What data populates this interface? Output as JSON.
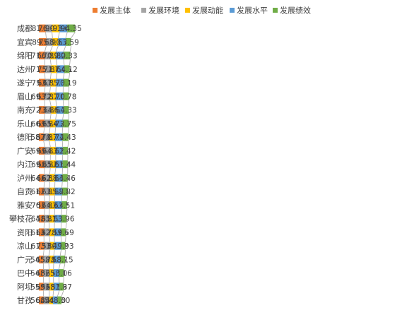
{
  "chart_data": {
    "type": "bar",
    "orientation": "horizontal",
    "stacked": true,
    "title": "",
    "legend_position": "top",
    "categories": [
      "成都",
      "宜宾",
      "绵阳",
      "达州",
      "遂宁",
      "眉山",
      "南充",
      "乐山",
      "德阳",
      "广安",
      "内江",
      "泸州",
      "自贡",
      "雅安",
      "攀枝花",
      "资阳",
      "凉山",
      "广元",
      "巴中",
      "阿坝",
      "甘孜"
    ],
    "series": [
      {
        "name": "发展主体",
        "color": "#ED7D31",
        "values": [
          81.17,
          89.32,
          71.36,
          71.58,
          75.6,
          69.13,
          72.71,
          66.04,
          58.07,
          69.27,
          69.21,
          64.42,
          61.38,
          70.07,
          64.11,
          61.08,
          61.35,
          54.3,
          54.59,
          55.93,
          56.32
        ]
      },
      {
        "name": "发展环境",
        "color": "#A5A5A5",
        "values": [
          76.91,
          75.28,
          66.16,
          75.87,
          63.65,
          63.24,
          73.53,
          69.9,
          67.01,
          69.38,
          68.19,
          66.62,
          67.14,
          57.7,
          58.51,
          63.28,
          73.33,
          65.44,
          68.78,
          69.4,
          68.83
        ]
      },
      {
        "name": "发展动能",
        "color": "#FFC000",
        "values": [
          90.19,
          68.13,
          70.25,
          71.81,
          67.71,
          72.21,
          64.5,
          65.61,
          70.34,
          64.2,
          65.62,
          62.71,
          63.77,
          64.49,
          65.52,
          62.37,
          53.47,
          58.88,
          52.65,
          51.12,
          44.92
        ]
      },
      {
        "name": "发展水平",
        "color": "#5B9BD5",
        "values": [
          93.67,
          90.71,
          89.21,
          87.05,
          85.33,
          87.01,
          86.11,
          84.2,
          87.2,
          83.51,
          82.62,
          88.35,
          85.24,
          83.42,
          81.71,
          78.66,
          80.32,
          78.17,
          65.51,
          68.59,
          54.4
        ]
      },
      {
        "name": "发展绩效",
        "color": "#70AD47",
        "values": [
          94.35,
          63.59,
          80.33,
          64.12,
          70.19,
          70.78,
          64.33,
          73.75,
          74.43,
          62.42,
          61.44,
          64.46,
          68.82,
          63.51,
          63.96,
          59.69,
          49.93,
          58.15,
          58.06,
          51.87,
          48.3
        ]
      }
    ]
  }
}
